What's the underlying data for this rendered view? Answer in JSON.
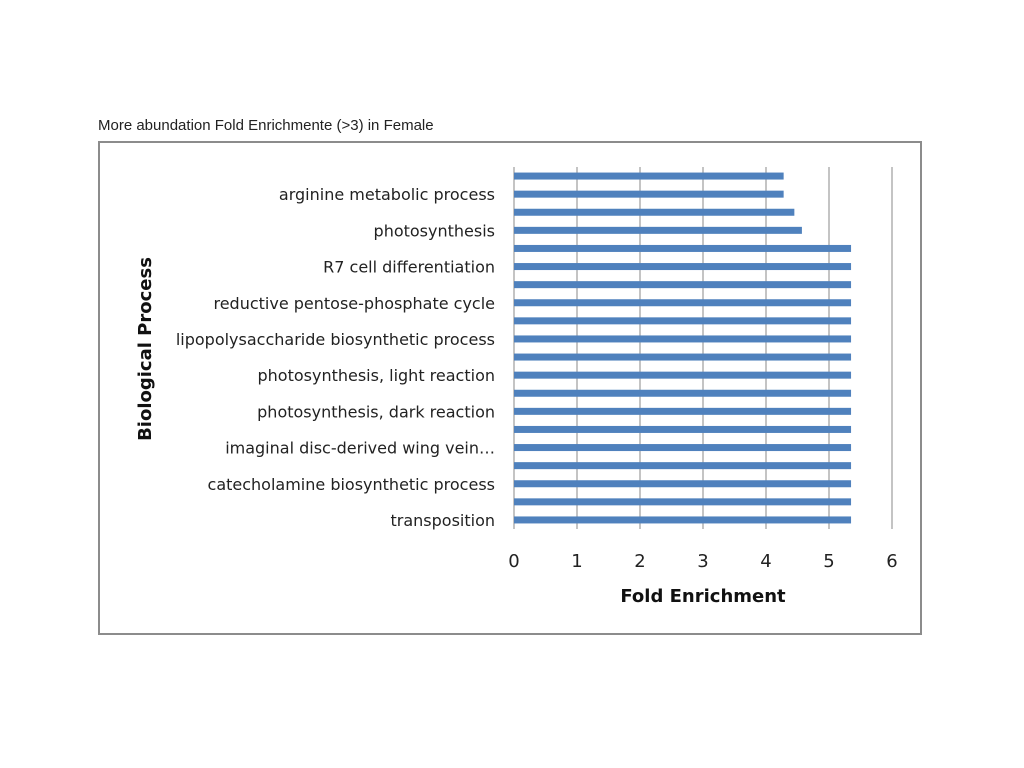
{
  "caption": "More abundation Fold Enrichmente (>3) in Female",
  "chart_data": {
    "type": "bar",
    "orientation": "horizontal",
    "title": "More abundation Fold Enrichmente (>3) in Female",
    "xlabel": "Fold Enrichment",
    "ylabel": "Biological Process",
    "xlim": [
      0,
      6
    ],
    "xticks": [
      0,
      1,
      2,
      3,
      4,
      5,
      6
    ],
    "grid": "vertical",
    "bar_color": "#4f81bd",
    "categories": [
      "",
      "arginine metabolic process",
      "",
      "photosynthesis",
      "",
      "R7 cell differentiation",
      "",
      "reductive pentose-phosphate cycle",
      "",
      "lipopolysaccharide biosynthetic process",
      "",
      "photosynthesis, light reaction",
      "",
      "photosynthesis, dark reaction",
      "",
      "imaginal disc-derived wing vein…",
      "",
      "catecholamine biosynthetic process",
      "",
      "transposition"
    ],
    "values": [
      4.28,
      4.28,
      4.45,
      4.57,
      5.35,
      5.35,
      5.35,
      5.35,
      5.35,
      5.35,
      5.35,
      5.35,
      5.35,
      5.35,
      5.35,
      5.35,
      5.35,
      5.35,
      5.35,
      5.35
    ]
  }
}
